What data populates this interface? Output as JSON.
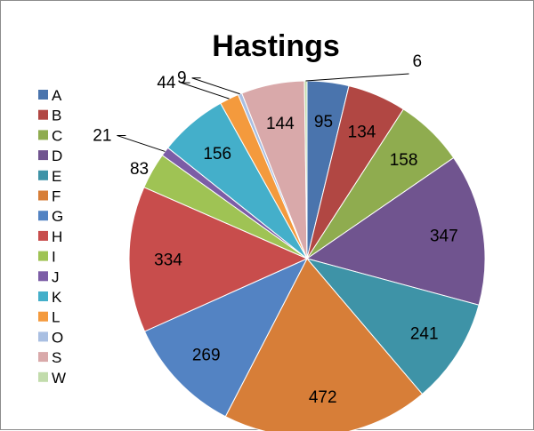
{
  "chart_data": {
    "type": "pie",
    "title": "Hastings",
    "legend_position": "left",
    "categories": [
      "A",
      "B",
      "C",
      "D",
      "E",
      "F",
      "G",
      "H",
      "I",
      "J",
      "K",
      "L",
      "O",
      "S",
      "W"
    ],
    "values": [
      95,
      134,
      158,
      347,
      241,
      472,
      269,
      334,
      83,
      21,
      156,
      44,
      9,
      144,
      6
    ],
    "colors": [
      "#4a74ad",
      "#b14743",
      "#8fac4f",
      "#70548f",
      "#3e93a7",
      "#d77e38",
      "#5383c3",
      "#c84d4c",
      "#9fc354",
      "#7c5da6",
      "#44afca",
      "#f49a3d",
      "#a9bfe2",
      "#d9a9aa",
      "#c2dcac"
    ]
  }
}
